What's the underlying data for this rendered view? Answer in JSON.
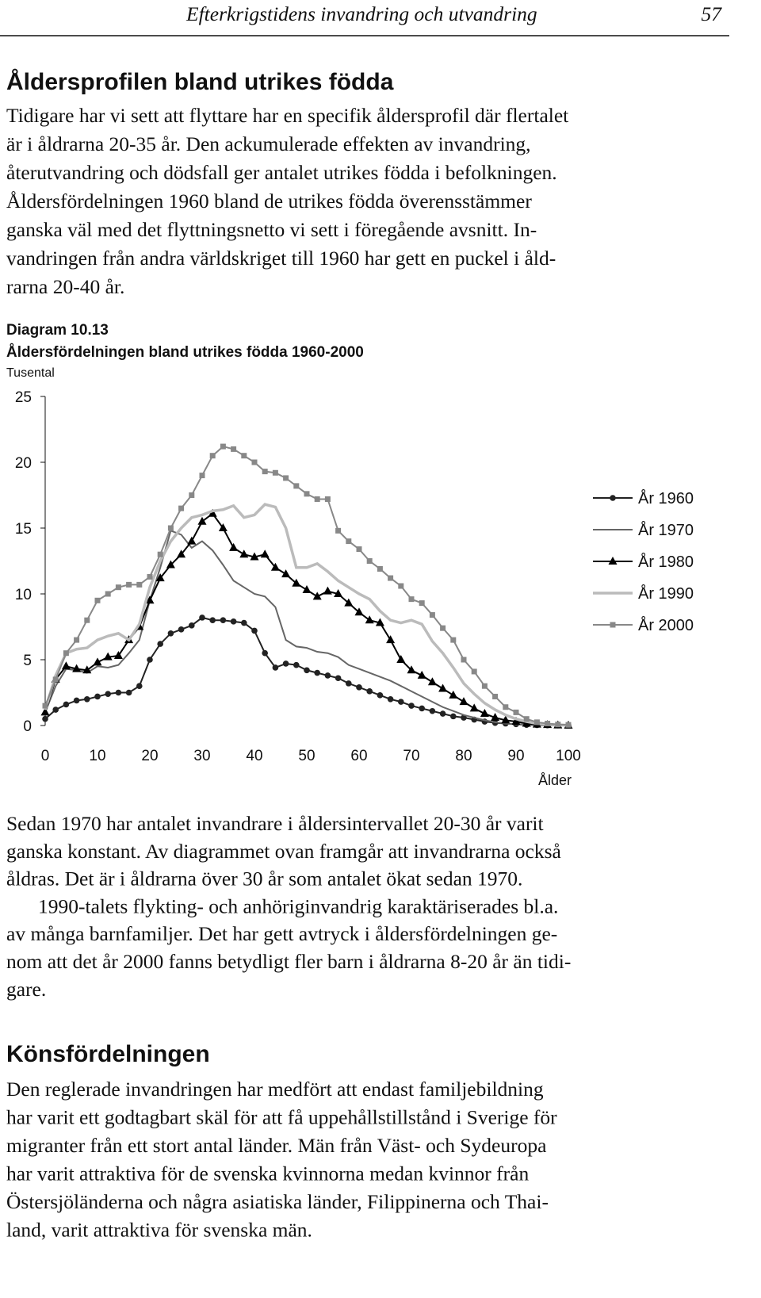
{
  "header": {
    "title": "Efterkrigstidens invandring  och utvandring",
    "page": "57"
  },
  "section_1": {
    "heading": "Åldersprofilen bland utrikes födda",
    "paragraphs": [
      [
        "Tidigare har vi sett att flyttare har en specifik åldersprofil där flertalet",
        "är i åldrarna 20-35 år. Den ackumulerade effekten av invandring,",
        "återutvandring och dödsfall ger antalet utrikes födda i befolkningen.",
        "Åldersfördelningen 1960 bland de utrikes födda överensstämmer",
        "ganska väl med det flyttningsnetto vi sett i föregående avsnitt. In-",
        "vandringen från andra världskriget till 1960 har gett en puckel i åld-",
        "rarna 20-40 år."
      ]
    ]
  },
  "figure": {
    "label": "Diagram 10.13"
  },
  "chart_data": {
    "type": "line",
    "title": "Åldersfördelningen bland utrikes födda 1960-2000",
    "ylabel": "Tusental",
    "xlabel": "Ålder",
    "x": [
      0,
      2,
      4,
      6,
      8,
      10,
      12,
      14,
      16,
      18,
      20,
      22,
      24,
      26,
      28,
      30,
      32,
      34,
      36,
      38,
      40,
      42,
      44,
      46,
      48,
      50,
      52,
      54,
      56,
      58,
      60,
      62,
      64,
      66,
      68,
      70,
      72,
      74,
      76,
      78,
      80,
      82,
      84,
      86,
      88,
      90,
      92,
      94,
      96,
      98,
      100
    ],
    "series": [
      {
        "name": "År 1960",
        "color": "#222222",
        "marker": "circle",
        "values": [
          0.5,
          1.2,
          1.6,
          1.9,
          2.0,
          2.2,
          2.4,
          2.5,
          2.5,
          3.0,
          5.0,
          6.2,
          7.0,
          7.3,
          7.6,
          8.2,
          8.0,
          8.0,
          7.9,
          7.8,
          7.2,
          5.5,
          4.4,
          4.7,
          4.6,
          4.2,
          4.0,
          3.8,
          3.6,
          3.2,
          2.9,
          2.6,
          2.3,
          2.0,
          1.8,
          1.5,
          1.3,
          1.1,
          0.9,
          0.7,
          0.6,
          0.45,
          0.3,
          0.2,
          0.15,
          0.1,
          0.05,
          0.03,
          0.02,
          0.01,
          0.01
        ]
      },
      {
        "name": "År 1970",
        "color": "#666666",
        "marker": "none",
        "values": [
          1.0,
          3.0,
          4.3,
          4.2,
          4.0,
          4.5,
          4.4,
          4.6,
          5.5,
          6.5,
          9.5,
          12.0,
          14.8,
          14.5,
          13.5,
          14.0,
          13.3,
          12.2,
          11.0,
          10.5,
          10.0,
          9.8,
          9.0,
          6.5,
          6.0,
          5.9,
          5.6,
          5.5,
          5.2,
          4.6,
          4.3,
          4.0,
          3.7,
          3.4,
          3.0,
          2.6,
          2.2,
          1.8,
          1.4,
          1.1,
          0.8,
          0.6,
          0.4,
          0.25,
          0.15,
          0.1,
          0.05,
          0.03,
          0.02,
          0.01,
          0.01
        ]
      },
      {
        "name": "År 1980",
        "color": "#000000",
        "marker": "triangle",
        "values": [
          1.0,
          3.5,
          4.5,
          4.3,
          4.2,
          4.8,
          5.2,
          5.3,
          6.5,
          7.5,
          9.5,
          11.2,
          12.2,
          13.0,
          14.0,
          15.5,
          16.1,
          15.0,
          13.5,
          13.0,
          12.8,
          13.0,
          12.0,
          11.5,
          10.8,
          10.3,
          9.8,
          10.2,
          10.0,
          9.3,
          8.6,
          8.0,
          7.8,
          6.5,
          5.0,
          4.2,
          3.8,
          3.3,
          2.8,
          2.3,
          1.8,
          1.3,
          0.9,
          0.6,
          0.4,
          0.3,
          0.15,
          0.08,
          0.05,
          0.02,
          0.01
        ]
      },
      {
        "name": "År 1990",
        "color": "#bbbbbb",
        "marker": "none",
        "values": [
          1.2,
          3.8,
          5.5,
          5.8,
          5.9,
          6.5,
          6.8,
          7.0,
          6.5,
          7.7,
          10.5,
          12.5,
          14.0,
          15.0,
          15.8,
          16.0,
          16.3,
          16.4,
          16.7,
          15.8,
          16.0,
          16.8,
          16.6,
          15.0,
          12.0,
          12.0,
          12.3,
          11.7,
          11.0,
          10.5,
          10.0,
          9.6,
          8.7,
          8.0,
          7.8,
          8.0,
          7.7,
          6.4,
          5.5,
          4.4,
          3.2,
          2.4,
          1.7,
          1.2,
          0.8,
          0.5,
          0.3,
          0.15,
          0.08,
          0.04,
          0.02
        ]
      },
      {
        "name": "År 2000",
        "color": "#888888",
        "marker": "square",
        "values": [
          1.5,
          3.5,
          5.5,
          6.5,
          8.0,
          9.5,
          10.0,
          10.5,
          10.7,
          10.7,
          11.3,
          13.0,
          15.0,
          16.5,
          17.5,
          19.0,
          20.5,
          21.2,
          21.0,
          20.5,
          20.0,
          19.3,
          19.2,
          18.8,
          18.2,
          17.6,
          17.2,
          17.2,
          14.8,
          14.0,
          13.4,
          12.5,
          11.9,
          11.2,
          10.6,
          9.6,
          9.3,
          8.4,
          7.4,
          6.5,
          5.0,
          4.1,
          3.0,
          2.2,
          1.4,
          1.0,
          0.5,
          0.25,
          0.15,
          0.08,
          0.05
        ]
      }
    ],
    "xlim": [
      0,
      100
    ],
    "xticks": [
      0,
      10,
      20,
      30,
      40,
      50,
      60,
      70,
      80,
      90,
      100
    ],
    "ylim": [
      0,
      25
    ],
    "yticks": [
      0,
      5,
      10,
      15,
      20,
      25
    ],
    "grid": false,
    "legend": "right"
  },
  "text_after_figure": {
    "paragraphs": [
      [
        "Sedan 1970 har antalet invandrare i åldersintervallet 20-30 år varit",
        "ganska konstant. Av diagrammet ovan framgår att invandrarna också",
        "åldras. Det är i åldrarna över 30 år som antalet ökat sedan 1970."
      ],
      [
        "1990-talets flykting- och anhöriginvandrig karaktäriserades bl.a.",
        "av många barnfamiljer. Det har gett avtryck i åldersfördelningen ge-",
        "nom att det år 2000 fanns betydligt fler barn i åldrarna 8-20 år än tidi-",
        "gare."
      ]
    ]
  },
  "section_2": {
    "heading": "Könsfördelningen",
    "paragraphs": [
      [
        "Den reglerade invandringen har medfört att endast familjebildning",
        "har varit ett godtagbart skäl för att få uppehållstillstånd i Sverige för",
        "migranter från ett stort antal länder. Män från Väst- och Sydeuropa",
        "har varit attraktiva för de svenska kvinnorna medan kvinnor från",
        "Östersjöländerna och några asiatiska länder, Filippinerna och Thai-",
        "land, varit attraktiva för svenska män."
      ]
    ]
  }
}
